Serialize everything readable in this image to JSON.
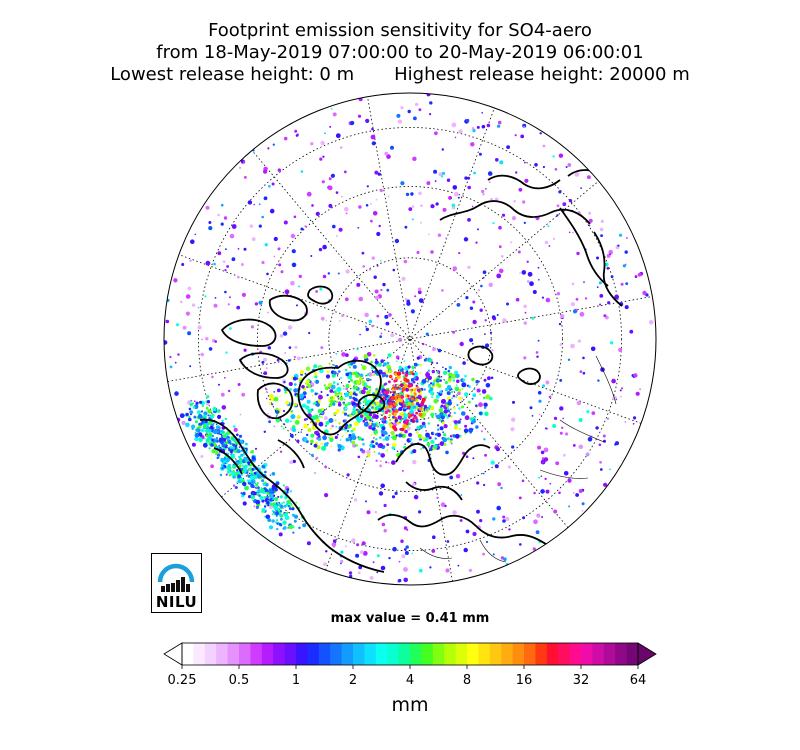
{
  "title": {
    "line1": "Footprint emission sensitivity for SO4-aero",
    "line2": "from 18-May-2019 07:00:00 to 20-May-2019 06:00:01",
    "line3_left": "Lowest release height: 0 m",
    "line3_right": "Highest release height: 20000 m"
  },
  "map": {
    "projection": "north-polar-orthographic",
    "graticule": "dotted",
    "colors": {
      "coastline": "#000000",
      "borders": "#000000",
      "outline": "#000000"
    }
  },
  "max_value_text": "max value = 0.41 mm",
  "logo": {
    "text": "NILU",
    "arc_color": "#1aa0dc"
  },
  "colorbar": {
    "unit": "mm",
    "tick_labels": [
      "0.25",
      "0.5",
      "1",
      "2",
      "4",
      "8",
      "16",
      "32",
      "64"
    ],
    "colors": [
      "#ffffff",
      "#fbe9ff",
      "#f4d2ff",
      "#edb4ff",
      "#e592ff",
      "#dc6cff",
      "#cf3cff",
      "#b51cff",
      "#8f10ff",
      "#6a10ff",
      "#3a14ff",
      "#1a2cff",
      "#1452ff",
      "#1476ff",
      "#129cff",
      "#10c0ff",
      "#0ee0ff",
      "#0afff0",
      "#08ffd0",
      "#0cff9c",
      "#20ff5a",
      "#44ff20",
      "#80ff10",
      "#b4ff08",
      "#dcff08",
      "#ffff10",
      "#ffe410",
      "#ffc810",
      "#ffac10",
      "#ff8e10",
      "#ff6a10",
      "#ff3a10",
      "#ff1030",
      "#ff0e60",
      "#ff0c8e",
      "#f00ca8",
      "#d00ca8",
      "#b00a98",
      "#900888",
      "#740676"
    ],
    "under_color": "#ffffff",
    "over_color": "#6a066a"
  }
}
